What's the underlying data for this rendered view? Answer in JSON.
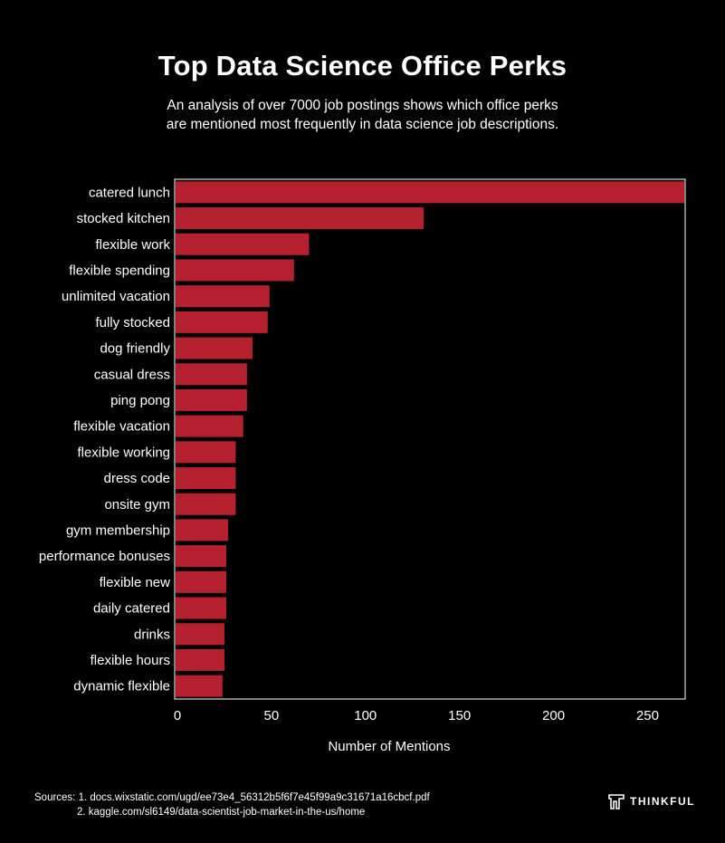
{
  "title": "Top Data Science Office Perks",
  "subtitle": {
    "line1": "An analysis of over 7000 job postings shows which office perks",
    "line2": "are mentioned most frequently in data science job descriptions."
  },
  "chart_data": {
    "type": "bar",
    "orientation": "horizontal",
    "categories": [
      "catered lunch",
      "stocked kitchen",
      "flexible work",
      "flexible spending",
      "unlimited vacation",
      "fully stocked",
      "dog friendly",
      "casual dress",
      "ping pong",
      "flexible vacation",
      "flexible working",
      "dress code",
      "onsite gym",
      "gym membership",
      "performance bonuses",
      "flexible new",
      "daily catered",
      "drinks",
      "flexible hours",
      "dynamic flexible"
    ],
    "values": [
      276,
      131,
      70,
      62,
      49,
      48,
      40,
      37,
      37,
      35,
      31,
      31,
      31,
      27,
      26,
      26,
      26,
      25,
      25,
      24
    ],
    "xlabel": "Number of Mentions",
    "xlim": [
      0,
      270
    ],
    "xticks": [
      "0",
      "50",
      "100",
      "150",
      "200",
      "250"
    ],
    "xtick_values": [
      0,
      50,
      100,
      150,
      200,
      250
    ],
    "bar_color": "#b5202e",
    "background": "#000000",
    "text_color": "#ffffff"
  },
  "sources": {
    "line1": "Sources: 1. docs.wixstatic.com/ugd/ee73e4_56312b5f6f7e45f99a9c31671a16cbcf.pdf",
    "line2": "2. kaggle.com/sl6149/data-scientist-job-market-in-the-us/home"
  },
  "logo": {
    "text": "THINKFUL",
    "icon": "thinkful-logo-icon"
  }
}
